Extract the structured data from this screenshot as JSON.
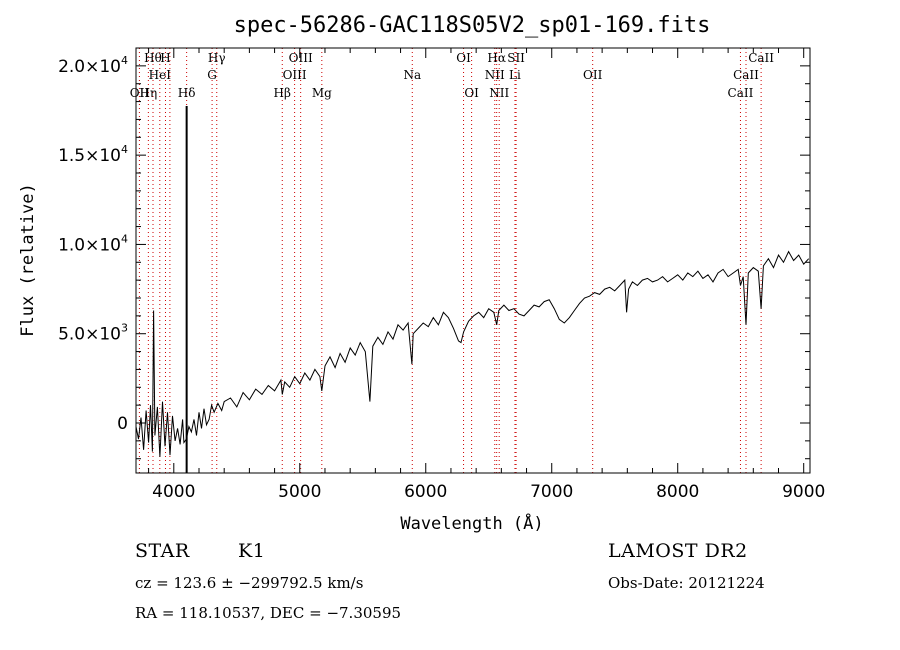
{
  "chart_data": {
    "type": "line",
    "title": "spec-56286-GAC118S05V2_sp01-169.fits",
    "xlabel": "Wavelength (Å)",
    "ylabel": "Flux (relative)",
    "xlim": [
      3700,
      9050
    ],
    "ylim": [
      -2800,
      21000
    ],
    "grid": false,
    "x_ticks": [
      {
        "value": 4000,
        "label": "4000"
      },
      {
        "value": 5000,
        "label": "5000"
      },
      {
        "value": 6000,
        "label": "6000"
      },
      {
        "value": 7000,
        "label": "7000"
      },
      {
        "value": 8000,
        "label": "8000"
      },
      {
        "value": 9000,
        "label": "9000"
      }
    ],
    "y_ticks": [
      {
        "value": 0,
        "mantissa": "0",
        "exp": ""
      },
      {
        "value": 5000,
        "mantissa": "5.0×10",
        "exp": "3"
      },
      {
        "value": 10000,
        "mantissa": "1.0×10",
        "exp": "4"
      },
      {
        "value": 15000,
        "mantissa": "1.5×10",
        "exp": "4"
      },
      {
        "value": 20000,
        "mantissa": "2.0×10",
        "exp": "4"
      }
    ],
    "series": [
      {
        "points": [
          [
            3700,
            -200
          ],
          [
            3720,
            -900
          ],
          [
            3740,
            300
          ],
          [
            3760,
            -1500
          ],
          [
            3780,
            700
          ],
          [
            3800,
            -1100
          ],
          [
            3815,
            1000
          ],
          [
            3830,
            -1600
          ],
          [
            3840,
            6300
          ],
          [
            3850,
            -700
          ],
          [
            3870,
            900
          ],
          [
            3890,
            -1900
          ],
          [
            3910,
            1200
          ],
          [
            3930,
            -1300
          ],
          [
            3950,
            600
          ],
          [
            3970,
            -1800
          ],
          [
            3990,
            400
          ],
          [
            4010,
            -1000
          ],
          [
            4030,
            -300
          ],
          [
            4050,
            -1200
          ],
          [
            4070,
            200
          ],
          [
            4080,
            -1100
          ],
          [
            4100,
            -900
          ],
          [
            4120,
            -200
          ],
          [
            4140,
            -500
          ],
          [
            4160,
            200
          ],
          [
            4180,
            -700
          ],
          [
            4200,
            600
          ],
          [
            4220,
            -300
          ],
          [
            4240,
            800
          ],
          [
            4260,
            -100
          ],
          [
            4280,
            200
          ],
          [
            4300,
            1000
          ],
          [
            4320,
            600
          ],
          [
            4350,
            1100
          ],
          [
            4380,
            700
          ],
          [
            4400,
            1200
          ],
          [
            4450,
            1400
          ],
          [
            4500,
            900
          ],
          [
            4550,
            1700
          ],
          [
            4600,
            1300
          ],
          [
            4650,
            1900
          ],
          [
            4700,
            1600
          ],
          [
            4750,
            2100
          ],
          [
            4800,
            1800
          ],
          [
            4850,
            2400
          ],
          [
            4861,
            1600
          ],
          [
            4880,
            2300
          ],
          [
            4920,
            2000
          ],
          [
            4960,
            2600
          ],
          [
            5000,
            2200
          ],
          [
            5040,
            2800
          ],
          [
            5080,
            2400
          ],
          [
            5120,
            3000
          ],
          [
            5160,
            2600
          ],
          [
            5175,
            1800
          ],
          [
            5200,
            3200
          ],
          [
            5240,
            3700
          ],
          [
            5280,
            3100
          ],
          [
            5320,
            3900
          ],
          [
            5360,
            3400
          ],
          [
            5400,
            4200
          ],
          [
            5440,
            3800
          ],
          [
            5480,
            4500
          ],
          [
            5520,
            4000
          ],
          [
            5557,
            1200
          ],
          [
            5580,
            4300
          ],
          [
            5620,
            4800
          ],
          [
            5660,
            4400
          ],
          [
            5700,
            5100
          ],
          [
            5740,
            4700
          ],
          [
            5780,
            5500
          ],
          [
            5820,
            5200
          ],
          [
            5860,
            5600
          ],
          [
            5890,
            3300
          ],
          [
            5900,
            5000
          ],
          [
            5940,
            5300
          ],
          [
            5980,
            5600
          ],
          [
            6020,
            5400
          ],
          [
            6060,
            5900
          ],
          [
            6100,
            5500
          ],
          [
            6140,
            6200
          ],
          [
            6180,
            5900
          ],
          [
            6220,
            5300
          ],
          [
            6260,
            4600
          ],
          [
            6280,
            4500
          ],
          [
            6300,
            5100
          ],
          [
            6340,
            5700
          ],
          [
            6380,
            6000
          ],
          [
            6420,
            6200
          ],
          [
            6460,
            5900
          ],
          [
            6500,
            6400
          ],
          [
            6540,
            6200
          ],
          [
            6563,
            5500
          ],
          [
            6580,
            6300
          ],
          [
            6620,
            6600
          ],
          [
            6660,
            6300
          ],
          [
            6700,
            6400
          ],
          [
            6740,
            6100
          ],
          [
            6780,
            6000
          ],
          [
            6820,
            6300
          ],
          [
            6860,
            6600
          ],
          [
            6900,
            6500
          ],
          [
            6940,
            6800
          ],
          [
            6980,
            6900
          ],
          [
            7020,
            6400
          ],
          [
            7060,
            5800
          ],
          [
            7100,
            5600
          ],
          [
            7140,
            5900
          ],
          [
            7180,
            6300
          ],
          [
            7220,
            6700
          ],
          [
            7260,
            7000
          ],
          [
            7300,
            7100
          ],
          [
            7340,
            7300
          ],
          [
            7380,
            7200
          ],
          [
            7420,
            7500
          ],
          [
            7460,
            7600
          ],
          [
            7500,
            7400
          ],
          [
            7540,
            7700
          ],
          [
            7580,
            8000
          ],
          [
            7594,
            6200
          ],
          [
            7610,
            7500
          ],
          [
            7640,
            7900
          ],
          [
            7680,
            7700
          ],
          [
            7720,
            8000
          ],
          [
            7760,
            8100
          ],
          [
            7800,
            7900
          ],
          [
            7840,
            8000
          ],
          [
            7880,
            8200
          ],
          [
            7920,
            7900
          ],
          [
            7960,
            8100
          ],
          [
            8000,
            8300
          ],
          [
            8040,
            8000
          ],
          [
            8080,
            8400
          ],
          [
            8120,
            8200
          ],
          [
            8160,
            8500
          ],
          [
            8200,
            8100
          ],
          [
            8240,
            8300
          ],
          [
            8280,
            7900
          ],
          [
            8320,
            8400
          ],
          [
            8360,
            8600
          ],
          [
            8400,
            8200
          ],
          [
            8440,
            8400
          ],
          [
            8480,
            8600
          ],
          [
            8498,
            7700
          ],
          [
            8520,
            8200
          ],
          [
            8542,
            5500
          ],
          [
            8560,
            8400
          ],
          [
            8600,
            8700
          ],
          [
            8640,
            8500
          ],
          [
            8662,
            6400
          ],
          [
            8680,
            8800
          ],
          [
            8720,
            9200
          ],
          [
            8760,
            8700
          ],
          [
            8800,
            9400
          ],
          [
            8840,
            9000
          ],
          [
            8880,
            9600
          ],
          [
            8920,
            9100
          ],
          [
            8960,
            9400
          ],
          [
            9000,
            8900
          ],
          [
            9040,
            9200
          ]
        ]
      }
    ],
    "lines": [
      {
        "w": 3727,
        "label": "OII",
        "row": 3
      },
      {
        "w": 3798,
        "label": "Hη",
        "row": 3
      },
      {
        "w": 3835,
        "label": "Hθ",
        "row": 1
      },
      {
        "w": 3889,
        "label": "HeI",
        "row": 2
      },
      {
        "w": 3934,
        "label": "H",
        "row": 1
      },
      {
        "w": 3969,
        "label": "",
        "row": 0
      },
      {
        "w": 4102,
        "label": "Hδ",
        "row": 3
      },
      {
        "w": 4304,
        "label": "G",
        "row": 2
      },
      {
        "w": 4341,
        "label": "Hγ",
        "row": 1
      },
      {
        "w": 4861,
        "label": "Hβ",
        "row": 3
      },
      {
        "w": 4959,
        "label": "OIII",
        "row": 2
      },
      {
        "w": 5007,
        "label": "OIII",
        "row": 1
      },
      {
        "w": 5175,
        "label": "Mg",
        "row": 3
      },
      {
        "w": 5893,
        "label": "Na",
        "row": 2
      },
      {
        "w": 6300,
        "label": "OI",
        "row": 1
      },
      {
        "w": 6364,
        "label": "OI",
        "row": 3
      },
      {
        "w": 6548,
        "label": "NII",
        "row": 2
      },
      {
        "w": 6563,
        "label": "Hα",
        "row": 1
      },
      {
        "w": 6583,
        "label": "NII",
        "row": 3
      },
      {
        "w": 6708,
        "label": "Li",
        "row": 2
      },
      {
        "w": 6717,
        "label": "SII",
        "row": 1
      },
      {
        "w": 7325,
        "label": "OII",
        "row": 2
      },
      {
        "w": 8498,
        "label": "CaII",
        "row": 3
      },
      {
        "w": 8542,
        "label": "CaII",
        "row": 2
      },
      {
        "w": 8662,
        "label": "CaII",
        "row": 1
      }
    ],
    "hdelta_marker": 4102
  },
  "info": {
    "object_class": "STAR",
    "subclass": "K1",
    "survey": "LAMOST DR2",
    "cz": "cz = 123.6 ± −299792.5 km/s",
    "obs_date": "Obs-Date: 20121224",
    "radec": "RA = 118.10537, DEC =  −7.30595"
  }
}
